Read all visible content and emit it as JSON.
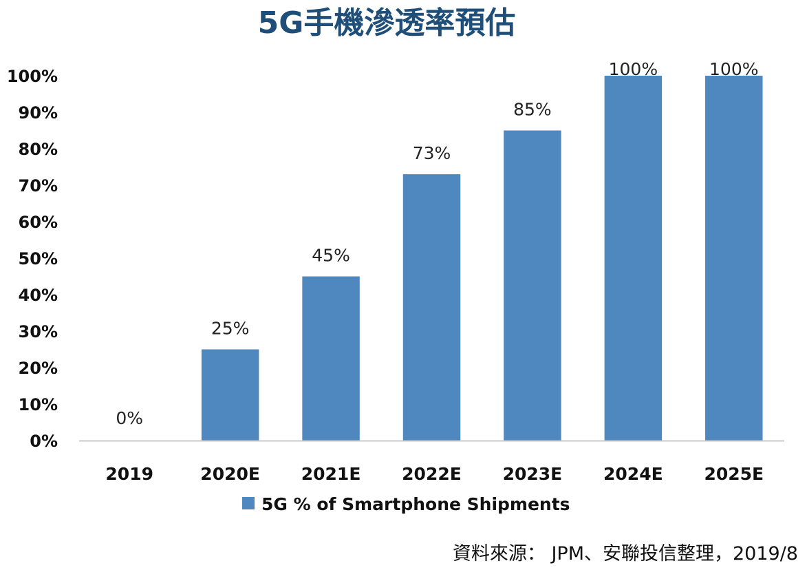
{
  "chart_data": {
    "type": "bar",
    "title": "5G手機滲透率預估",
    "categories": [
      "2019",
      "2020E",
      "2021E",
      "2022E",
      "2023E",
      "2024E",
      "2025E"
    ],
    "series": [
      {
        "name": "5G % of Smartphone Shipments",
        "values": [
          0,
          25,
          45,
          73,
          85,
          100,
          100
        ],
        "color": "#4f87bf"
      }
    ],
    "data_labels": [
      "0%",
      "25%",
      "45%",
      "73%",
      "85%",
      "100%",
      "100%"
    ],
    "y_ticks": [
      "0%",
      "10%",
      "20%",
      "30%",
      "40%",
      "50%",
      "60%",
      "70%",
      "80%",
      "90%",
      "100%"
    ],
    "ylim": [
      0,
      100
    ],
    "xlabel": "",
    "ylabel": "",
    "grid": false,
    "legend_position": "bottom"
  },
  "source_note": "資料來源： JPM、安聯投信整理，2019/8",
  "colors": {
    "title": "#1f4e79",
    "bar": "#4f87bf",
    "axis": "#c8c8c8"
  }
}
